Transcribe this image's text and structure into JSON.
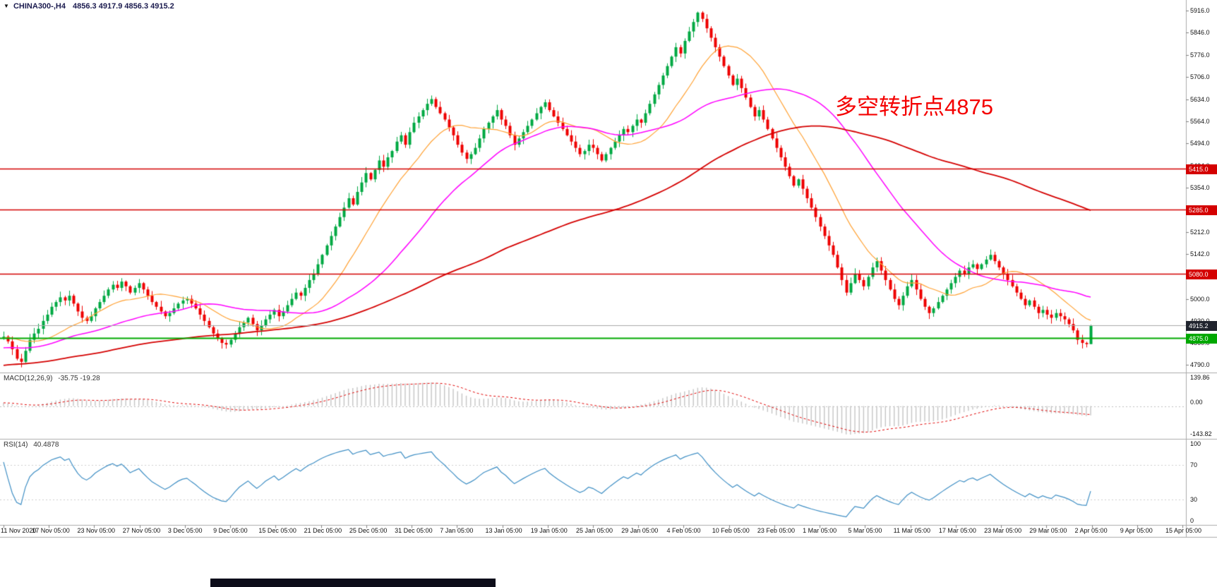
{
  "icons": {
    "symbol_marker": "▼"
  },
  "chart_data": [
    {
      "type": "candlestick",
      "title": "CHINA300-,H4",
      "ohlc_readout": "4856.3 4917.9 4856.3 4915.2",
      "current": {
        "open": 4856.3,
        "high": 4917.9,
        "low": 4856.3,
        "close": 4915.2
      },
      "annotation": "多空转折点4875",
      "ylim": [
        4766,
        5950
      ],
      "y_ticks": [
        "5916.0",
        "5846.0",
        "5776.0",
        "5706.0",
        "5634.0",
        "5564.0",
        "5494.0",
        "5424.0",
        "5354.0",
        "5284.0",
        "5212.0",
        "5142.0",
        "5072.0",
        "5000.0",
        "4930.0",
        "4860.0",
        "4790.0"
      ],
      "x_ticks": [
        "11 Nov 2020",
        "17 Nov 05:00",
        "23 Nov 05:00",
        "27 Nov 05:00",
        "3 Dec 05:00",
        "9 Dec 05:00",
        "15 Dec 05:00",
        "21 Dec 05:00",
        "25 Dec 05:00",
        "31 Dec 05:00",
        "7 Jan 05:00",
        "13 Jan 05:00",
        "19 Jan 05:00",
        "25 Jan 05:00",
        "29 Jan 05:00",
        "4 Feb 05:00",
        "10 Feb 05:00",
        "23 Feb 05:00",
        "1 Mar 05:00",
        "5 Mar 05:00",
        "11 Mar 05:00",
        "17 Mar 05:00",
        "23 Mar 05:00",
        "29 Mar 05:00",
        "2 Apr 05:00",
        "9 Apr 05:00",
        "15 Apr 05:00"
      ],
      "h_lines": [
        {
          "price": 5415.0,
          "label": "5415.0",
          "line_color": "#D40000",
          "box_color": "#D40000",
          "width": 1.6
        },
        {
          "price": 5285.0,
          "label": "5285.0",
          "line_color": "#D40000",
          "box_color": "#D40000",
          "width": 1.6
        },
        {
          "price": 5080.0,
          "label": "5080.0",
          "line_color": "#D40000",
          "box_color": "#D40000",
          "width": 1.6
        },
        {
          "price": 4875.0,
          "label": "4875.0",
          "line_color": "#00A800",
          "box_color": "#00A800",
          "width": 2
        },
        {
          "price": 4915.2,
          "label": "4915.2",
          "line_color": "#A9A9A9",
          "box_color": "#20242E",
          "width": 1
        }
      ],
      "moving_averages": [
        {
          "name": "fast",
          "window": 16,
          "color": "#FFA133"
        },
        {
          "name": "mid",
          "window": 40,
          "color": "#FF00FF"
        },
        {
          "name": "slow",
          "window": 110,
          "color": "#D40000"
        }
      ],
      "candle_colors": {
        "up": "#00A843",
        "down": "#EE0000"
      },
      "closes": [
        4880,
        4865,
        4840,
        4810,
        4800,
        4835,
        4870,
        4890,
        4905,
        4930,
        4950,
        4975,
        4990,
        5005,
        4995,
        5010,
        4985,
        4960,
        4940,
        4930,
        4945,
        4970,
        4990,
        5010,
        5030,
        5045,
        5035,
        5055,
        5040,
        5020,
        5035,
        5050,
        5030,
        5010,
        4990,
        4975,
        4960,
        4945,
        4955,
        4970,
        4985,
        4995,
        5000,
        4985,
        4970,
        4950,
        4930,
        4910,
        4890,
        4875,
        4860,
        4855,
        4870,
        4890,
        4910,
        4925,
        4940,
        4920,
        4900,
        4915,
        4935,
        4950,
        4965,
        4945,
        4960,
        4980,
        5000,
        5020,
        5010,
        5035,
        5060,
        5080,
        5110,
        5140,
        5170,
        5200,
        5230,
        5260,
        5290,
        5320,
        5300,
        5340,
        5370,
        5400,
        5380,
        5410,
        5440,
        5420,
        5450,
        5470,
        5500,
        5520,
        5490,
        5530,
        5560,
        5580,
        5600,
        5620,
        5635,
        5610,
        5590,
        5570,
        5545,
        5520,
        5490,
        5465,
        5445,
        5460,
        5480,
        5510,
        5540,
        5560,
        5580,
        5600,
        5570,
        5550,
        5520,
        5490,
        5510,
        5530,
        5550,
        5570,
        5590,
        5610,
        5625,
        5600,
        5580,
        5560,
        5540,
        5520,
        5500,
        5480,
        5460,
        5470,
        5490,
        5480,
        5460,
        5440,
        5460,
        5480,
        5500,
        5520,
        5540,
        5530,
        5550,
        5570,
        5560,
        5590,
        5620,
        5650,
        5680,
        5710,
        5740,
        5770,
        5800,
        5780,
        5820,
        5850,
        5880,
        5910,
        5890,
        5860,
        5830,
        5800,
        5770,
        5740,
        5710,
        5680,
        5700,
        5670,
        5640,
        5610,
        5580,
        5600,
        5570,
        5540,
        5510,
        5480,
        5450,
        5420,
        5390,
        5360,
        5380,
        5350,
        5320,
        5290,
        5260,
        5230,
        5200,
        5170,
        5140,
        5100,
        5060,
        5020,
        5050,
        5080,
        5060,
        5040,
        5070,
        5100,
        5120,
        5090,
        5060,
        5030,
        5000,
        4980,
        5010,
        5040,
        5060,
        5030,
        5000,
        4975,
        4955,
        4970,
        4990,
        5010,
        5030,
        5050,
        5070,
        5090,
        5080,
        5100,
        5110,
        5095,
        5110,
        5125,
        5140,
        5120,
        5100,
        5080,
        5060,
        5040,
        5020,
        5000,
        4980,
        4995,
        4975,
        4955,
        4965,
        4950,
        4940,
        4955,
        4945,
        4935,
        4920,
        4900,
        4870,
        4860,
        4856.3,
        4915.2
      ]
    },
    {
      "type": "macd-histogram",
      "label": "MACD(12,26,9)",
      "values": "-35.75 -19.28",
      "params": {
        "fast": 12,
        "slow": 26,
        "signal": 9
      },
      "current": {
        "macd": -35.75,
        "signal": -19.28
      },
      "y_ticks": [
        "139.86",
        "0.00",
        "-143.82"
      ],
      "hist_color": "#C4C4C4",
      "signal_color": "#E00000"
    },
    {
      "type": "rsi-line",
      "label": "RSI(14)",
      "value": "40.4878",
      "period": 14,
      "levels": [
        70,
        30
      ],
      "y_ticks": [
        "100",
        "70",
        "30",
        "0"
      ],
      "line_color": "#3E8EC4"
    }
  ]
}
